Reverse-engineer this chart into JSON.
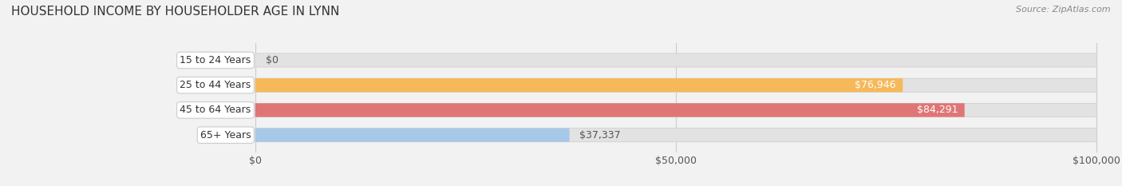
{
  "title": "HOUSEHOLD INCOME BY HOUSEHOLDER AGE IN LYNN",
  "source": "Source: ZipAtlas.com",
  "categories": [
    "15 to 24 Years",
    "25 to 44 Years",
    "45 to 64 Years",
    "65+ Years"
  ],
  "values": [
    0,
    76946,
    84291,
    37337
  ],
  "bar_colors": [
    "#f2a0b0",
    "#f5b95a",
    "#e07575",
    "#a8c8e8"
  ],
  "background_color": "#f2f2f2",
  "bar_bg_color": "#e2e2e2",
  "xlim": [
    0,
    100000
  ],
  "xticks": [
    0,
    50000,
    100000
  ],
  "xtick_labels": [
    "$0",
    "$50,000",
    "$100,000"
  ],
  "value_labels": [
    "$0",
    "$76,946",
    "$84,291",
    "$37,337"
  ],
  "title_fontsize": 11,
  "source_fontsize": 8,
  "tick_fontsize": 9,
  "bar_label_fontsize": 9,
  "category_fontsize": 9,
  "bar_height": 0.55,
  "figsize": [
    14.06,
    2.33
  ],
  "dpi": 100
}
